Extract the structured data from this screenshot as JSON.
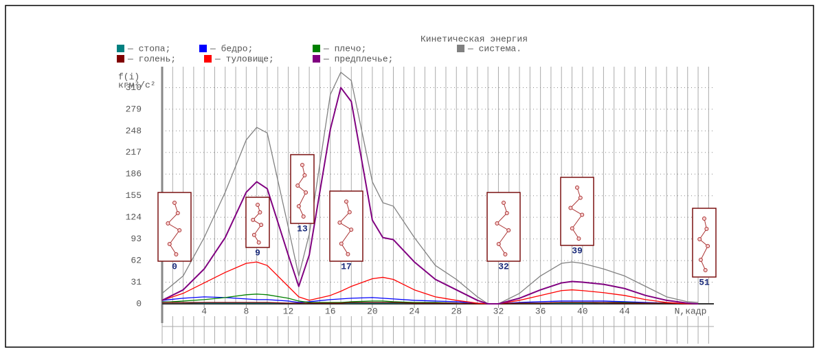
{
  "chart_data": {
    "type": "line",
    "title": "Кинетическая энергия",
    "ylabel": [
      "f(i)",
      "кгм²/с²"
    ],
    "xlabel": "N,кадр",
    "x": [
      0,
      2,
      4,
      6,
      8,
      9,
      10,
      12,
      13,
      14,
      16,
      17,
      18,
      20,
      21,
      22,
      24,
      26,
      28,
      30,
      31,
      32,
      34,
      36,
      38,
      39,
      40,
      42,
      44,
      46,
      48,
      50,
      51
    ],
    "xlim": [
      0,
      52.5
    ],
    "xticks": [
      4,
      8,
      12,
      16,
      20,
      24,
      28,
      32,
      36,
      40,
      44
    ],
    "ylim": [
      0,
      340
    ],
    "yticks": [
      0,
      31,
      62,
      93,
      124,
      155,
      186,
      217,
      248,
      279,
      310
    ],
    "grid": true,
    "series": [
      {
        "name": "— стопа;",
        "color": "#008080",
        "values": [
          3,
          2,
          1,
          1,
          1,
          1,
          1,
          1,
          1,
          1,
          1,
          1,
          1,
          1,
          1,
          1,
          1,
          1,
          1,
          0,
          0,
          0,
          1,
          1,
          1,
          1,
          1,
          2,
          2,
          1,
          1,
          0,
          0
        ]
      },
      {
        "name": "— бедро;",
        "color": "#0000ff",
        "values": [
          5,
          8,
          10,
          9,
          7,
          6,
          6,
          4,
          2,
          3,
          6,
          7,
          8,
          9,
          8,
          7,
          5,
          4,
          3,
          1,
          0,
          0,
          2,
          3,
          4,
          4,
          4,
          4,
          3,
          2,
          1,
          0,
          0
        ]
      },
      {
        "name": "— плечо;",
        "color": "#008000",
        "values": [
          2,
          4,
          6,
          9,
          13,
          14,
          13,
          8,
          4,
          2,
          2,
          2,
          3,
          4,
          4,
          3,
          2,
          2,
          1,
          0,
          0,
          0,
          1,
          1,
          2,
          2,
          2,
          2,
          2,
          1,
          1,
          0,
          0
        ]
      },
      {
        "name": "— система.",
        "color": "#808080",
        "values": [
          15,
          40,
          95,
          160,
          235,
          253,
          245,
          110,
          40,
          100,
          300,
          332,
          320,
          175,
          145,
          140,
          95,
          55,
          35,
          10,
          0,
          0,
          15,
          40,
          58,
          60,
          58,
          50,
          40,
          25,
          10,
          3,
          2
        ]
      },
      {
        "name": "— голень;",
        "color": "#800000",
        "values": [
          2,
          2,
          2,
          2,
          2,
          2,
          2,
          1,
          1,
          1,
          1,
          1,
          2,
          2,
          2,
          2,
          1,
          1,
          1,
          0,
          0,
          0,
          1,
          1,
          2,
          2,
          2,
          2,
          1,
          1,
          1,
          0,
          0
        ]
      },
      {
        "name": "— туловище;",
        "color": "#ff0000",
        "values": [
          5,
          15,
          30,
          45,
          58,
          60,
          55,
          25,
          10,
          5,
          12,
          18,
          25,
          36,
          38,
          35,
          20,
          10,
          5,
          1,
          0,
          0,
          5,
          12,
          19,
          20,
          19,
          16,
          12,
          6,
          2,
          0,
          0
        ]
      },
      {
        "name": "— предплечье;",
        "color": "#800080",
        "values": [
          5,
          20,
          50,
          95,
          160,
          175,
          165,
          70,
          25,
          70,
          250,
          310,
          290,
          120,
          95,
          92,
          60,
          35,
          20,
          5,
          0,
          0,
          8,
          20,
          30,
          32,
          31,
          28,
          22,
          12,
          5,
          1,
          0
        ]
      }
    ],
    "frame_markers": [
      0,
      9,
      13,
      17,
      32,
      39,
      51
    ]
  }
}
